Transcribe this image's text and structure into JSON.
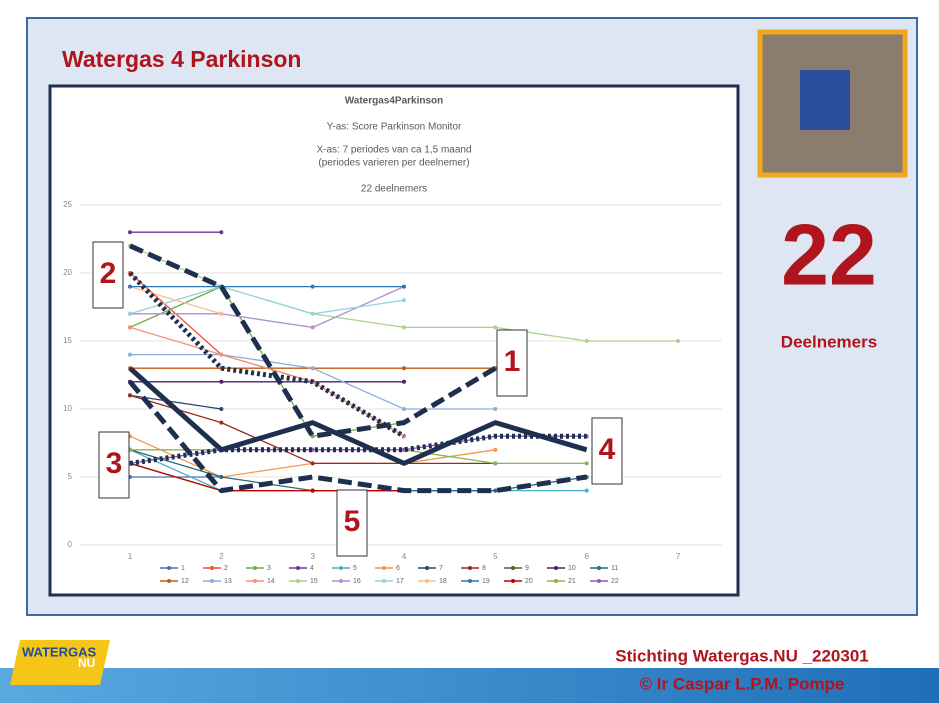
{
  "slide": {
    "title": "Watergas 4 Parkinson",
    "count": "22",
    "count_label": "Deelnemers",
    "footer_line1": "Stichting Watergas.NU _220301",
    "footer_line2": "© Ir Caspar L.P.M. Pompe",
    "logo_top": "WATERGAS",
    "logo_bottom": "NU"
  },
  "chart_data": {
    "type": "line",
    "title": "Watergas4Parkinson",
    "subtitles": [
      "Y-as: Score Parkinson Monitor",
      "X-as: 7 periodes van ca  1,5 maand",
      "(periodes varieren per deelnemer)",
      "22 deelnemers"
    ],
    "categories": [
      "1",
      "2",
      "3",
      "4",
      "5",
      "6",
      "7"
    ],
    "ylim": [
      0,
      25
    ],
    "yticks": [
      0,
      5,
      10,
      15,
      20,
      25
    ],
    "grid": true,
    "series": [
      {
        "name": "1",
        "color": "#4472c4",
        "values": [
          5,
          5,
          null,
          null,
          null,
          null,
          null
        ]
      },
      {
        "name": "2",
        "color": "#ed4f31",
        "values": [
          20,
          14,
          12,
          8,
          null,
          null,
          null
        ]
      },
      {
        "name": "3",
        "color": "#70ad47",
        "values": [
          16,
          19,
          8,
          9,
          null,
          null,
          null
        ]
      },
      {
        "name": "4",
        "color": "#7030a0",
        "values": [
          23,
          23,
          null,
          null,
          null,
          null,
          null
        ]
      },
      {
        "name": "5",
        "color": "#4bacc6",
        "values": [
          7,
          4,
          4,
          4,
          4,
          4,
          null
        ]
      },
      {
        "name": "6",
        "color": "#f79646",
        "values": [
          8,
          5,
          6,
          6,
          7,
          null,
          null
        ]
      },
      {
        "name": "7",
        "color": "#264478",
        "values": [
          11,
          10,
          null,
          null,
          null,
          null,
          null
        ]
      },
      {
        "name": "8",
        "color": "#9e2a1f",
        "values": [
          11,
          9,
          6,
          6,
          6,
          null,
          null
        ]
      },
      {
        "name": "9",
        "color": "#43682b",
        "values": [
          6,
          4,
          4,
          4,
          4,
          null,
          null
        ]
      },
      {
        "name": "10",
        "color": "#4b2067",
        "values": [
          12,
          12,
          12,
          12,
          null,
          null,
          null
        ]
      },
      {
        "name": "11",
        "color": "#276a7c",
        "values": [
          7,
          5,
          4,
          4,
          4,
          5,
          null
        ]
      },
      {
        "name": "12",
        "color": "#c55a11",
        "values": [
          13,
          13,
          13,
          13,
          13,
          null,
          null
        ]
      },
      {
        "name": "13",
        "color": "#8faadc",
        "values": [
          14,
          14,
          13,
          10,
          10,
          null,
          null
        ]
      },
      {
        "name": "14",
        "color": "#f4917a",
        "values": [
          16,
          14,
          12,
          8,
          null,
          null,
          null
        ]
      },
      {
        "name": "15",
        "color": "#a9d18e",
        "values": [
          22,
          19,
          17,
          16,
          16,
          15,
          15
        ]
      },
      {
        "name": "16",
        "color": "#b18fcf",
        "values": [
          17,
          17,
          16,
          19,
          null,
          null,
          null
        ]
      },
      {
        "name": "17",
        "color": "#92d3e3",
        "values": [
          17,
          19,
          17,
          18,
          null,
          null,
          null
        ]
      },
      {
        "name": "18",
        "color": "#f9c08f",
        "values": [
          19,
          17,
          null,
          null,
          null,
          null,
          null
        ]
      },
      {
        "name": "19",
        "color": "#2e75b6",
        "values": [
          19,
          19,
          19,
          19,
          null,
          null,
          null
        ]
      },
      {
        "name": "20",
        "color": "#c00000",
        "values": [
          6,
          4,
          4,
          4,
          null,
          null,
          null
        ]
      },
      {
        "name": "21",
        "color": "#8db54a",
        "values": [
          7,
          7,
          7,
          7,
          6,
          6,
          null
        ]
      },
      {
        "name": "22",
        "color": "#8b5cb5",
        "values": [
          6,
          7,
          7,
          7,
          8,
          8,
          null
        ]
      }
    ],
    "highlights": [
      {
        "name": "1",
        "color": "#1f2f4f",
        "dash": "14 6",
        "values": [
          22,
          19,
          8,
          9,
          13,
          null,
          null
        ]
      },
      {
        "name": "2",
        "color": "#1f2f4f",
        "dash": "3 3",
        "values": [
          20,
          13,
          12,
          8,
          null,
          null,
          null
        ]
      },
      {
        "name": "3",
        "color": "#1f2f4f",
        "dash": "3 3",
        "values": [
          6,
          7,
          7,
          7,
          8,
          8,
          null
        ]
      },
      {
        "name": "4",
        "color": "#1f2f4f",
        "dash": "none",
        "values": [
          13,
          7,
          9,
          6,
          9,
          7,
          null
        ]
      },
      {
        "name": "5",
        "color": "#1f2f4f",
        "dash": "14 6",
        "values": [
          12,
          4,
          5,
          4,
          4,
          5,
          null
        ]
      }
    ]
  }
}
